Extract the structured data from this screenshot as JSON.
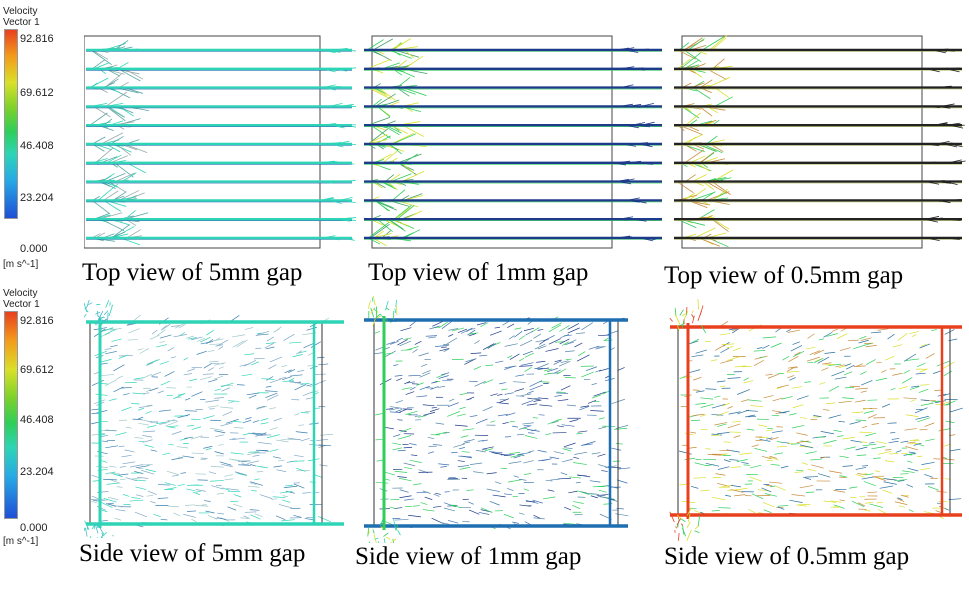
{
  "legends": [
    {
      "title_line1": "Velocity",
      "title_line2": "Vector 1",
      "ticks": [
        "92.816",
        "69.612",
        "46.408",
        "23.204",
        "0.000"
      ],
      "unit": "[m s^-1]"
    },
    {
      "title_line1": "Velocity",
      "title_line2": "Vector 1",
      "ticks": [
        "92.816",
        "69.612",
        "46.408",
        "23.204",
        "0.000"
      ],
      "unit": "[m s^-1]"
    }
  ],
  "captions": {
    "top_5mm": "Top view of 5mm gap",
    "top_1mm": "Top view of 1mm gap",
    "top_05mm": "Top view of 0.5mm gap",
    "side_5mm": "Side view of 5mm gap",
    "side_1mm": "Side view of 1mm gap",
    "side_05mm": "Side view of 0.5mm gap"
  },
  "colors": {
    "scale_max": "#e8401f",
    "scale_mid_high": "#d9e02a",
    "scale_mid": "#2fce5a",
    "scale_mid_low": "#2ed4b6",
    "scale_low": "#1f4fd6"
  }
}
